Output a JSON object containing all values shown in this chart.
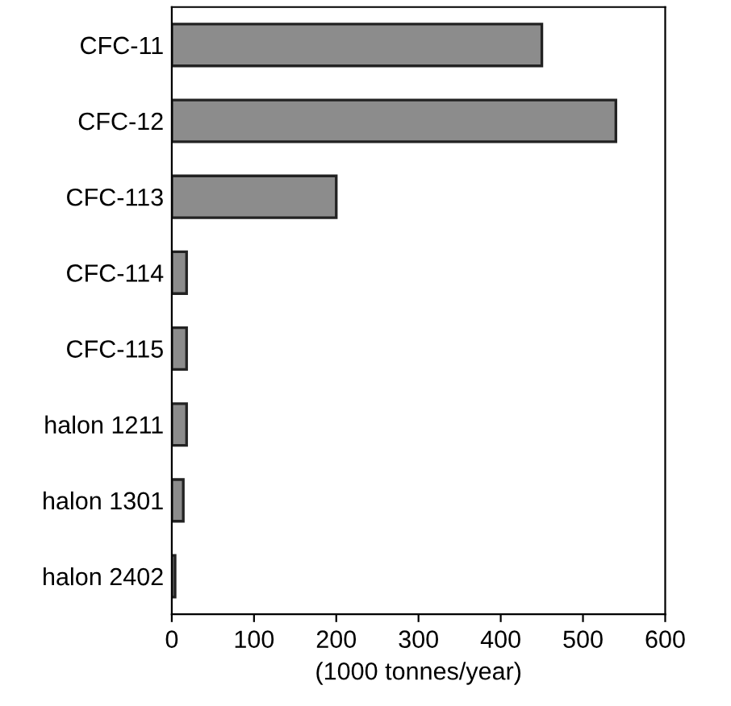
{
  "chart_data": {
    "type": "bar",
    "orientation": "horizontal",
    "xlabel": "(1000 tonnes/year)",
    "categories": [
      "CFC-11",
      "CFC-12",
      "CFC-113",
      "CFC-114",
      "CFC-115",
      "halon 1211",
      "halon 1301",
      "halon 2402"
    ],
    "values": [
      450,
      540,
      200,
      18,
      18,
      18,
      14,
      4
    ],
    "color": "#8c8c8c",
    "xlim": [
      0,
      600
    ],
    "xticks": [
      0,
      100,
      200,
      300,
      400,
      500,
      600
    ],
    "grid": false
  }
}
